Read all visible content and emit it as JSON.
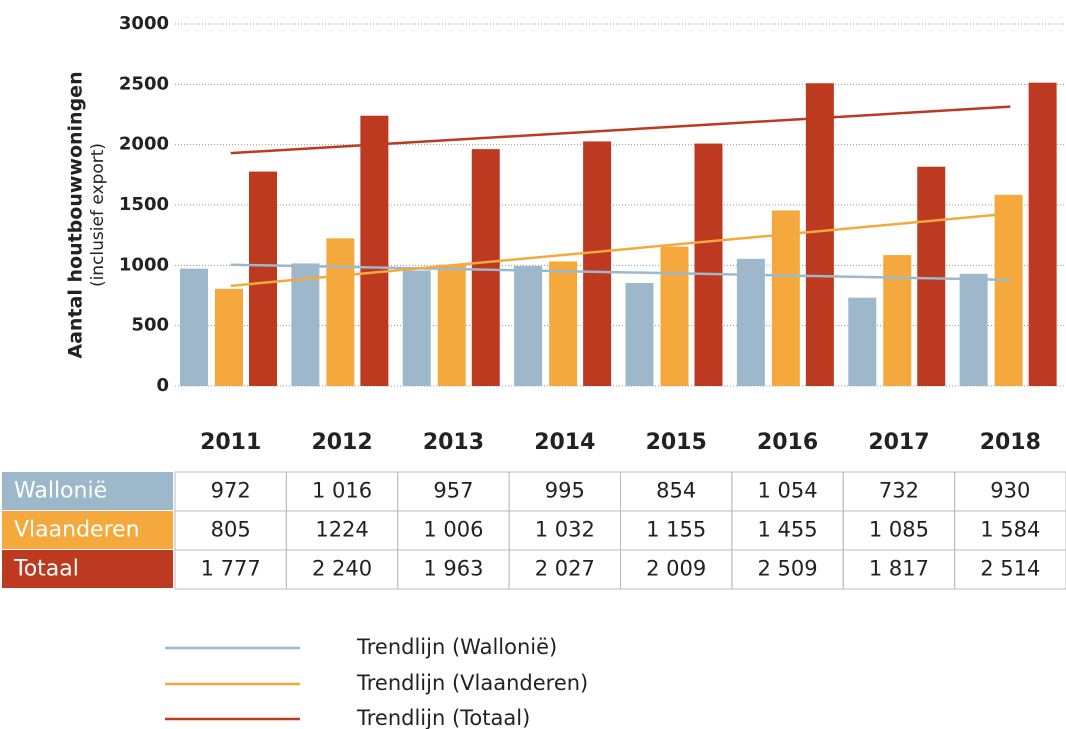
{
  "chart_data": {
    "type": "bar",
    "y_label": "Aantal houtbouwwoningen",
    "y_sublabel": "(inclusief export)",
    "categories": [
      "2011",
      "2012",
      "2013",
      "2014",
      "2015",
      "2016",
      "2017",
      "2018"
    ],
    "series": [
      {
        "name": "Wallonië",
        "color": "#9db8ca",
        "values": [
          972,
          1016,
          957,
          995,
          854,
          1054,
          732,
          930
        ],
        "value_labels": [
          "972",
          "1 016",
          "957",
          "995",
          "854",
          "1 054",
          "732",
          "930"
        ]
      },
      {
        "name": "Vlaanderen",
        "color": "#f5a93c",
        "values": [
          805,
          1224,
          1006,
          1032,
          1155,
          1455,
          1085,
          1584
        ],
        "value_labels": [
          "805",
          "1224",
          "1 006",
          "1 032",
          "1 155",
          "1 455",
          "1 085",
          "1 584"
        ]
      },
      {
        "name": "Totaal",
        "color": "#bd3a20",
        "values": [
          1777,
          2240,
          1963,
          2027,
          2009,
          2509,
          1817,
          2514
        ],
        "value_labels": [
          "1 777",
          "2 240",
          "1 963",
          "2 027",
          "2 009",
          "2 509",
          "1 817",
          "2 514"
        ]
      }
    ],
    "trendlines": [
      {
        "name": "Trendlijn (Wallonië)",
        "color": "#9db8ca",
        "values": [
          1005,
          880
        ]
      },
      {
        "name": "Trendlijn (Vlaanderen)",
        "color": "#f5a93c",
        "values": [
          830,
          1430
        ]
      },
      {
        "name": "Trendlijn (Totaal)",
        "color": "#bd3a20",
        "values": [
          1930,
          2315
        ]
      }
    ],
    "ylim": [
      0,
      3000
    ],
    "yticks": [
      0,
      500,
      1000,
      1500,
      2000,
      2500,
      3000
    ],
    "grid": true
  }
}
